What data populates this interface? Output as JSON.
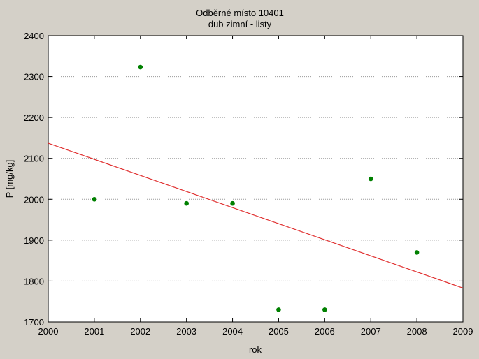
{
  "chart_data": {
    "type": "scatter",
    "title": "Odběrné místo 10401",
    "subtitle": "dub zimní - listy",
    "xlabel": "rok",
    "ylabel": "P [mg/kg]",
    "xlim": [
      2000,
      2009
    ],
    "ylim": [
      1700,
      2400
    ],
    "xticks": [
      2000,
      2001,
      2002,
      2003,
      2004,
      2005,
      2006,
      2007,
      2008,
      2009
    ],
    "yticks": [
      1700,
      1800,
      1900,
      2000,
      2100,
      2200,
      2300,
      2400
    ],
    "grid": "horizontal dotted",
    "series": [
      {
        "points": [
          {
            "x": 2001,
            "y": 2000
          },
          {
            "x": 2002,
            "y": 2323
          },
          {
            "x": 2003,
            "y": 1990
          },
          {
            "x": 2004,
            "y": 1990
          },
          {
            "x": 2005,
            "y": 1730
          },
          {
            "x": 2006,
            "y": 1730
          },
          {
            "x": 2007,
            "y": 2050
          },
          {
            "x": 2008,
            "y": 1870
          }
        ],
        "color": "#008000"
      }
    ],
    "trendline": {
      "type": "linear",
      "start": {
        "x": 2000,
        "y": 2137
      },
      "end": {
        "x": 2009,
        "y": 1783
      },
      "color": "#e03030"
    }
  }
}
